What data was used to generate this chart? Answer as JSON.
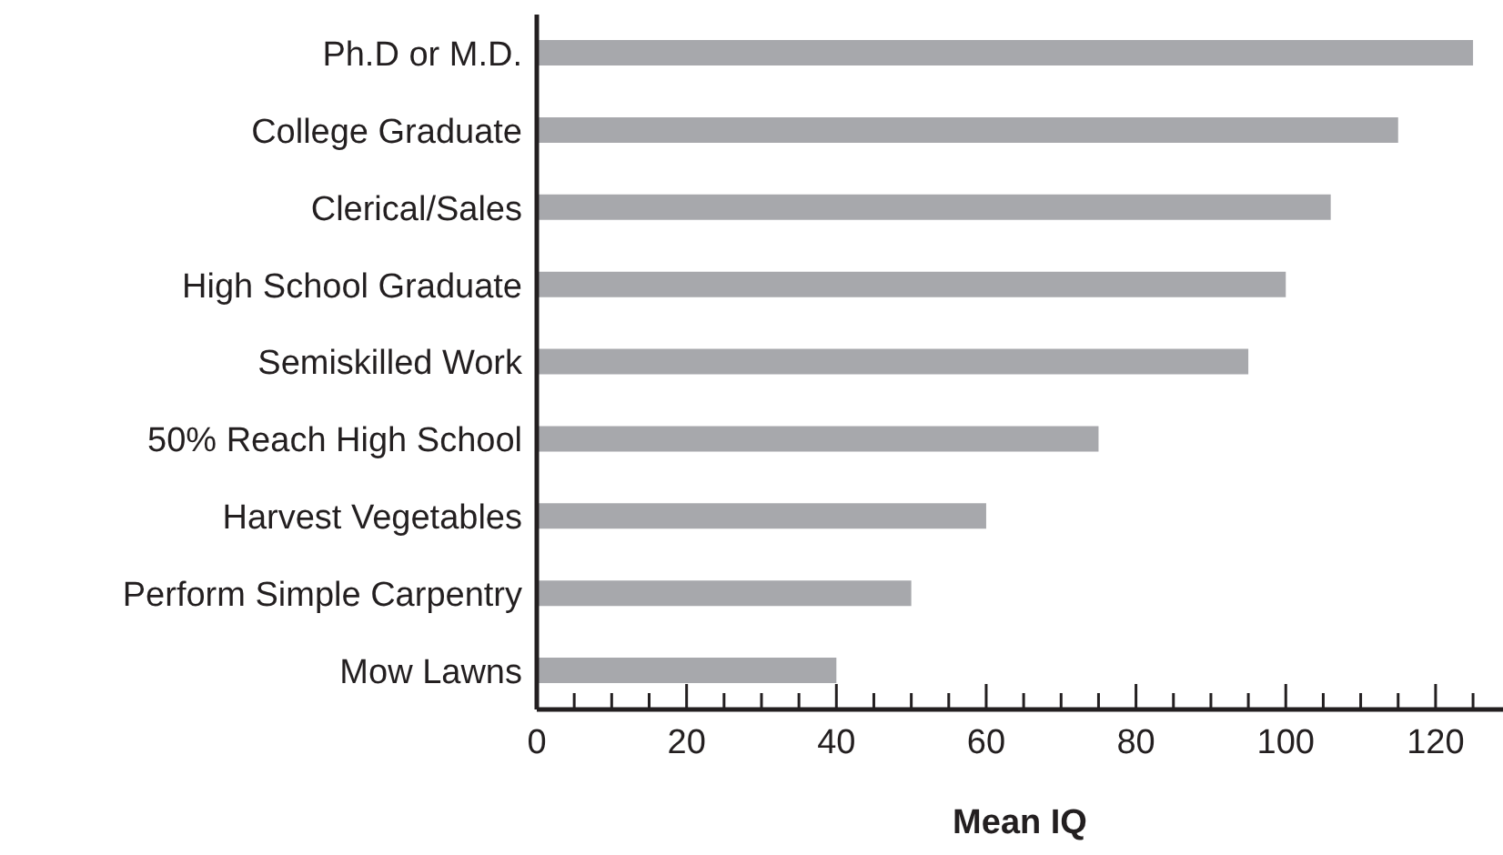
{
  "chart_data": {
    "type": "bar",
    "orientation": "horizontal",
    "xlabel": "Mean IQ",
    "categories": [
      "Ph.D or M.D.",
      "College Graduate",
      "Clerical/Sales",
      "High School Graduate",
      "Semiskilled Work",
      "50% Reach High School",
      "Harvest Vegetables",
      "Perform Simple Carpentry",
      "Mow Lawns"
    ],
    "values": [
      125,
      115,
      106,
      100,
      95,
      75,
      60,
      50,
      40
    ],
    "color": "#a7a8ac",
    "xlim": [
      0,
      129
    ],
    "xticks": [
      0,
      {
        "value": 5,
        "label": null
      },
      {
        "value": 10,
        "label": null
      },
      {
        "value": 15,
        "label": null
      },
      20,
      {
        "value": 25,
        "label": null
      },
      {
        "value": 30,
        "label": null
      },
      {
        "value": 35,
        "label": null
      },
      40,
      {
        "value": 45,
        "label": null
      },
      {
        "value": 50,
        "label": null
      },
      {
        "value": 55,
        "label": null
      },
      60,
      {
        "value": 65,
        "label": null
      },
      {
        "value": 70,
        "label": null
      },
      {
        "value": 75,
        "label": null
      },
      80,
      {
        "value": 85,
        "label": null
      },
      {
        "value": 90,
        "label": null
      },
      {
        "value": 95,
        "label": null
      },
      100,
      {
        "value": 105,
        "label": null
      },
      {
        "value": 110,
        "label": null
      },
      {
        "value": 115,
        "label": null
      },
      120,
      {
        "value": 125,
        "label": null
      }
    ],
    "grid": false,
    "legend": false
  }
}
